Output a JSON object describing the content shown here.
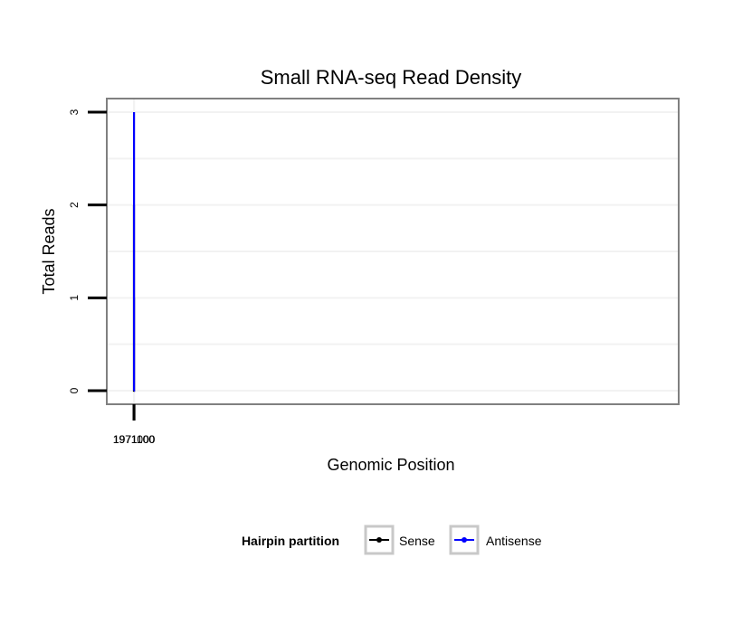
{
  "chart_data": {
    "type": "line",
    "title": "Small RNA-seq Read Density",
    "xlabel": "Genomic Position",
    "ylabel": "Total Reads",
    "x_reversed": true,
    "xlim": [
      1971190,
      970920
    ],
    "ylim": [
      0,
      3
    ],
    "x_ticks": [
      1971100,
      1971000
    ],
    "x_tick_labels": [
      "1971100",
      "1971000"
    ],
    "y_ticks": [
      0,
      1,
      2,
      3
    ],
    "y_tick_labels": [
      "0",
      "1",
      "2",
      "3"
    ],
    "grid": true,
    "legend": {
      "title": "Hairpin partition",
      "position": "bottom"
    },
    "series": [
      {
        "name": "Sense",
        "color": "#000000",
        "x": [
          1971178,
          1971160,
          1971159,
          1971158,
          1971157,
          1971138,
          1971137,
          1971136,
          1971133,
          1970983,
          1970982,
          1970965,
          1970964,
          1970963,
          1970962,
          1970930
        ],
        "y": [
          0,
          0,
          1,
          1,
          2,
          2,
          1,
          1,
          0,
          0,
          1,
          1,
          0,
          0,
          0,
          0
        ]
      },
      {
        "name": "Antisense",
        "color": "#0000ff",
        "x": [
          1971160,
          1971133,
          1970975,
          1970974,
          1970957,
          1970956
        ],
        "y": [
          0,
          0,
          0,
          3,
          3,
          0
        ]
      }
    ]
  }
}
